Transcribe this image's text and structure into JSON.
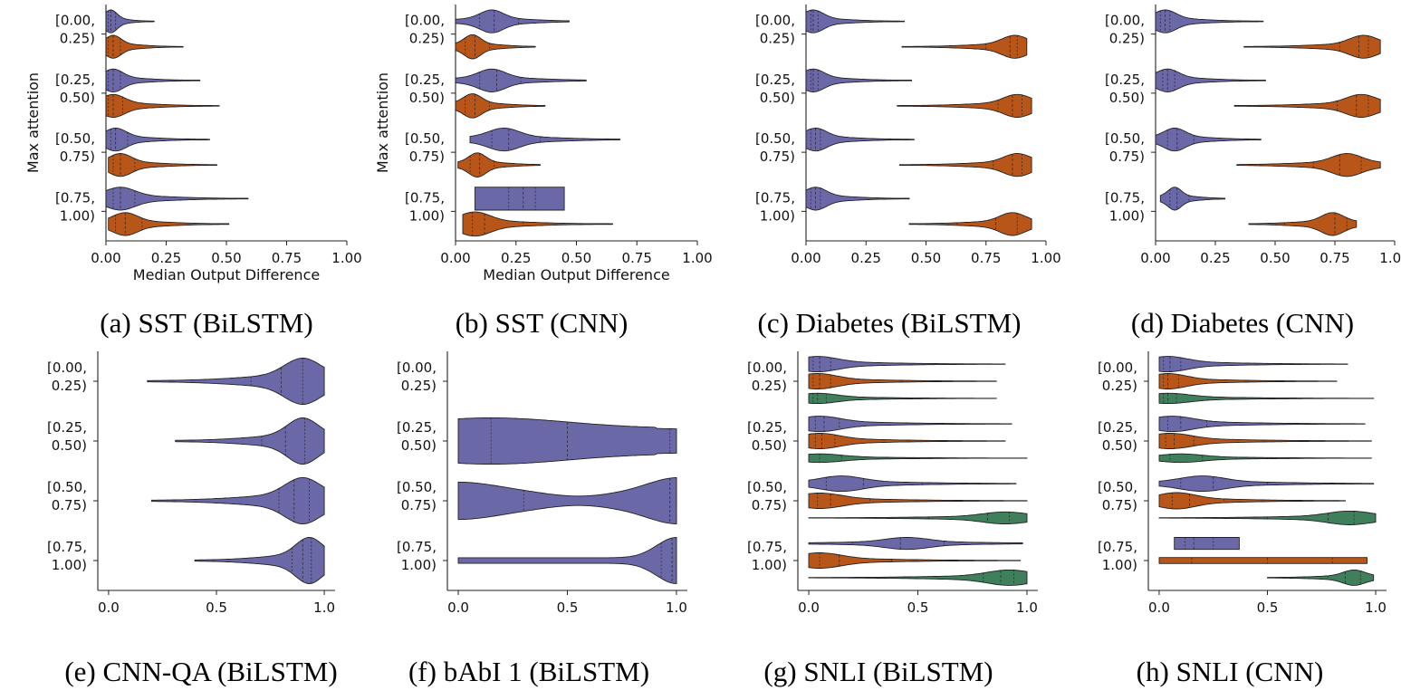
{
  "colors": {
    "purple": "#6b68a8",
    "orange": "#b8561a",
    "green": "#3f7f5c",
    "axis": "#222222"
  },
  "bin_labels": [
    "[0.00,|0.25)",
    "[0.25,|0.50)",
    "[0.50,|0.75)",
    "[0.75,|1.00)"
  ],
  "chart_data": [
    {
      "type": "violin",
      "caption": "(a) SST (BiLSTM)",
      "xlabel": "Median Output Difference",
      "ylabel": "Max attention",
      "xlim": [
        0,
        1
      ],
      "xticks": [
        0,
        0.25,
        0.5,
        0.75,
        1
      ],
      "xtick_labels": [
        "0.00",
        "0.25",
        "0.50",
        "0.75",
        "1.00"
      ],
      "groups": [
        [
          {
            "color": "purple",
            "min": 0.0,
            "max": 0.2,
            "q1": 0.01,
            "median": 0.02,
            "q3": 0.04,
            "peak": 0.02,
            "width": 0.9
          },
          {
            "color": "orange",
            "min": 0.0,
            "max": 0.32,
            "q1": 0.01,
            "median": 0.03,
            "q3": 0.06,
            "peak": 0.03,
            "width": 0.9
          }
        ],
        [
          {
            "color": "purple",
            "min": 0.0,
            "max": 0.39,
            "q1": 0.01,
            "median": 0.03,
            "q3": 0.06,
            "peak": 0.03,
            "width": 0.9
          },
          {
            "color": "orange",
            "min": 0.0,
            "max": 0.47,
            "q1": 0.01,
            "median": 0.03,
            "q3": 0.07,
            "peak": 0.03,
            "width": 0.9
          }
        ],
        [
          {
            "color": "purple",
            "min": 0.0,
            "max": 0.43,
            "q1": 0.02,
            "median": 0.04,
            "q3": 0.09,
            "peak": 0.04,
            "width": 0.9
          },
          {
            "color": "orange",
            "min": 0.01,
            "max": 0.46,
            "q1": 0.03,
            "median": 0.06,
            "q3": 0.12,
            "peak": 0.06,
            "width": 0.9
          }
        ],
        [
          {
            "color": "purple",
            "min": 0.0,
            "max": 0.59,
            "q1": 0.03,
            "median": 0.06,
            "q3": 0.12,
            "peak": 0.06,
            "width": 0.9
          },
          {
            "color": "orange",
            "min": 0.01,
            "max": 0.51,
            "q1": 0.04,
            "median": 0.08,
            "q3": 0.15,
            "peak": 0.08,
            "width": 0.9
          }
        ]
      ]
    },
    {
      "type": "violin",
      "caption": "(b) SST (CNN)",
      "xlabel": "Median Output Difference",
      "ylabel": "Max attention",
      "xlim": [
        0,
        1
      ],
      "xticks": [
        0,
        0.25,
        0.5,
        0.75,
        1
      ],
      "xtick_labels": [
        "0.00",
        "0.25",
        "0.50",
        "0.75",
        "1.00"
      ],
      "groups": [
        [
          {
            "color": "purple",
            "min": 0.0,
            "max": 0.47,
            "q1": 0.1,
            "median": 0.16,
            "q3": 0.26,
            "peak": 0.15,
            "width": 0.9
          },
          {
            "color": "orange",
            "min": 0.0,
            "max": 0.33,
            "q1": 0.04,
            "median": 0.08,
            "q3": 0.14,
            "peak": 0.07,
            "width": 0.95
          }
        ],
        [
          {
            "color": "purple",
            "min": 0.0,
            "max": 0.54,
            "q1": 0.1,
            "median": 0.17,
            "q3": 0.27,
            "peak": 0.15,
            "width": 0.9
          },
          {
            "color": "orange",
            "min": 0.0,
            "max": 0.37,
            "q1": 0.04,
            "median": 0.08,
            "q3": 0.14,
            "peak": 0.07,
            "width": 0.95
          }
        ],
        [
          {
            "color": "purple",
            "min": 0.06,
            "max": 0.68,
            "q1": 0.15,
            "median": 0.22,
            "q3": 0.35,
            "peak": 0.2,
            "width": 0.9
          },
          {
            "color": "orange",
            "min": 0.01,
            "max": 0.35,
            "q1": 0.06,
            "median": 0.1,
            "q3": 0.16,
            "peak": 0.09,
            "width": 0.95
          }
        ],
        [
          {
            "color": "purple",
            "min": 0.08,
            "max": 0.45,
            "q1": 0.22,
            "median": 0.28,
            "q3": 0.33,
            "peak": 0.28,
            "width": 0.9,
            "flat": true
          },
          {
            "color": "orange",
            "min": 0.03,
            "max": 0.65,
            "q1": 0.07,
            "median": 0.12,
            "q3": 0.28,
            "peak": 0.08,
            "width": 0.95
          }
        ]
      ]
    },
    {
      "type": "violin",
      "caption": "(c) Diabetes (BiLSTM)",
      "xlabel": "",
      "ylabel": "",
      "xlim": [
        0,
        1
      ],
      "xticks": [
        0,
        0.25,
        0.5,
        0.75,
        1
      ],
      "xtick_labels": [
        "0.00",
        "0.25",
        "0.50",
        "0.75",
        "1.00"
      ],
      "groups": [
        [
          {
            "color": "purple",
            "min": 0.0,
            "max": 0.41,
            "q1": 0.02,
            "median": 0.03,
            "q3": 0.05,
            "peak": 0.03,
            "width": 0.9
          },
          {
            "color": "orange",
            "min": 0.4,
            "max": 0.92,
            "q1": 0.75,
            "median": 0.85,
            "q3": 0.88,
            "peak": 0.87,
            "width": 0.9
          }
        ],
        [
          {
            "color": "purple",
            "min": 0.0,
            "max": 0.44,
            "q1": 0.02,
            "median": 0.03,
            "q3": 0.05,
            "peak": 0.03,
            "width": 0.9
          },
          {
            "color": "orange",
            "min": 0.38,
            "max": 0.94,
            "q1": 0.8,
            "median": 0.86,
            "q3": 0.9,
            "peak": 0.88,
            "width": 0.9
          }
        ],
        [
          {
            "color": "purple",
            "min": 0.0,
            "max": 0.45,
            "q1": 0.02,
            "median": 0.04,
            "q3": 0.06,
            "peak": 0.04,
            "width": 0.9
          },
          {
            "color": "orange",
            "min": 0.39,
            "max": 0.94,
            "q1": 0.78,
            "median": 0.86,
            "q3": 0.9,
            "peak": 0.88,
            "width": 0.9
          }
        ],
        [
          {
            "color": "purple",
            "min": 0.0,
            "max": 0.43,
            "q1": 0.02,
            "median": 0.04,
            "q3": 0.06,
            "peak": 0.04,
            "width": 0.9
          },
          {
            "color": "orange",
            "min": 0.43,
            "max": 0.94,
            "q1": 0.63,
            "median": 0.79,
            "q3": 0.88,
            "peak": 0.86,
            "width": 0.9
          }
        ]
      ]
    },
    {
      "type": "violin",
      "caption": "(d) Diabetes (CNN)",
      "xlabel": "",
      "ylabel": "",
      "xlim": [
        0,
        1
      ],
      "xticks": [
        0,
        0.25,
        0.5,
        0.75,
        1
      ],
      "xtick_labels": [
        "0.00",
        "0.25",
        "0.50",
        "0.75",
        "1.00"
      ],
      "groups": [
        [
          {
            "color": "purple",
            "min": 0.0,
            "max": 0.45,
            "q1": 0.02,
            "median": 0.04,
            "q3": 0.06,
            "peak": 0.04,
            "width": 0.9
          },
          {
            "color": "orange",
            "min": 0.37,
            "max": 0.94,
            "q1": 0.77,
            "median": 0.85,
            "q3": 0.89,
            "peak": 0.87,
            "width": 0.9
          }
        ],
        [
          {
            "color": "purple",
            "min": 0.0,
            "max": 0.46,
            "q1": 0.03,
            "median": 0.05,
            "q3": 0.08,
            "peak": 0.05,
            "width": 0.9
          },
          {
            "color": "orange",
            "min": 0.33,
            "max": 0.94,
            "q1": 0.76,
            "median": 0.84,
            "q3": 0.89,
            "peak": 0.86,
            "width": 0.9
          }
        ],
        [
          {
            "color": "purple",
            "min": 0.0,
            "max": 0.44,
            "q1": 0.05,
            "median": 0.09,
            "q3": 0.16,
            "peak": 0.08,
            "width": 0.9
          },
          {
            "color": "orange",
            "min": 0.34,
            "max": 0.94,
            "q1": 0.66,
            "median": 0.77,
            "q3": 0.86,
            "peak": 0.8,
            "width": 0.9
          }
        ],
        [
          {
            "color": "purple",
            "min": 0.02,
            "max": 0.29,
            "q1": 0.06,
            "median": 0.09,
            "q3": 0.14,
            "peak": 0.08,
            "width": 0.9
          },
          {
            "color": "orange",
            "min": 0.39,
            "max": 0.84,
            "q1": 0.54,
            "median": 0.75,
            "q3": 0.8,
            "peak": 0.74,
            "width": 0.9
          }
        ]
      ]
    },
    {
      "type": "violin",
      "caption": "(e) CNN-QA (BiLSTM)",
      "xlabel": "",
      "ylabel": "",
      "xlim": [
        -0.05,
        1.05
      ],
      "xticks": [
        0,
        0.5,
        1
      ],
      "xtick_labels": [
        "0.0",
        "0.5",
        "1.0"
      ],
      "groups": [
        [
          {
            "color": "purple",
            "min": 0.18,
            "max": 1.0,
            "q1": 0.66,
            "median": 0.8,
            "q3": 0.9,
            "peak": 0.9,
            "width": 0.9
          }
        ],
        [
          {
            "color": "purple",
            "min": 0.31,
            "max": 1.0,
            "q1": 0.71,
            "median": 0.82,
            "q3": 0.91,
            "peak": 0.9,
            "width": 0.9
          }
        ],
        [
          {
            "color": "purple",
            "min": 0.2,
            "max": 1.0,
            "q1": 0.79,
            "median": 0.86,
            "q3": 0.93,
            "peak": 0.9,
            "width": 0.9
          }
        ],
        [
          {
            "color": "purple",
            "min": 0.4,
            "max": 1.0,
            "q1": 0.85,
            "median": 0.9,
            "q3": 0.94,
            "peak": 0.93,
            "width": 0.9
          }
        ]
      ]
    },
    {
      "type": "violin",
      "caption": "(f) bAbI 1 (BiLSTM)",
      "xlabel": "",
      "ylabel": "",
      "xlim": [
        -0.05,
        1.05
      ],
      "xticks": [
        0,
        0.5,
        1
      ],
      "xtick_labels": [
        "0.0",
        "0.5",
        "1.0"
      ],
      "groups": [
        [],
        [
          {
            "color": "purple",
            "min": 0.0,
            "max": 1.0,
            "q1": 0.15,
            "median": 0.5,
            "q3": 0.97,
            "shape": "babi2",
            "width": 0.9
          }
        ],
        [
          {
            "color": "purple",
            "min": 0.0,
            "max": 1.0,
            "q1": 0.3,
            "median": 0.97,
            "q3": 1.0,
            "shape": "babi3",
            "width": 0.9
          }
        ],
        [
          {
            "color": "purple",
            "min": 0.0,
            "max": 1.0,
            "q1": 0.93,
            "median": 0.98,
            "q3": 1.0,
            "shape": "babi4",
            "width": 0.9
          }
        ]
      ]
    },
    {
      "type": "violin",
      "caption": "(g) SNLI (BiLSTM)",
      "xlabel": "",
      "ylabel": "",
      "xlim": [
        -0.05,
        1.05
      ],
      "xticks": [
        0,
        0.5,
        1
      ],
      "xtick_labels": [
        "0.0",
        "0.5",
        "1.0"
      ],
      "groups": [
        [
          {
            "color": "purple",
            "min": 0.0,
            "max": 0.9,
            "q1": 0.02,
            "median": 0.05,
            "q3": 0.1,
            "peak": 0.04,
            "width": 0.9
          },
          {
            "color": "orange",
            "min": 0.0,
            "max": 0.86,
            "q1": 0.02,
            "median": 0.05,
            "q3": 0.1,
            "peak": 0.04,
            "width": 0.9
          },
          {
            "color": "green",
            "min": 0.0,
            "max": 0.86,
            "q1": 0.02,
            "median": 0.04,
            "q3": 0.08,
            "peak": 0.04,
            "width": 0.6
          }
        ],
        [
          {
            "color": "purple",
            "min": 0.0,
            "max": 0.93,
            "q1": 0.03,
            "median": 0.07,
            "q3": 0.14,
            "peak": 0.05,
            "width": 0.9
          },
          {
            "color": "orange",
            "min": 0.0,
            "max": 0.9,
            "q1": 0.03,
            "median": 0.06,
            "q3": 0.12,
            "peak": 0.05,
            "width": 0.9
          },
          {
            "color": "green",
            "min": 0.0,
            "max": 1.0,
            "q1": 0.05,
            "median": 0.15,
            "q3": 0.45,
            "peak": 0.05,
            "width": 0.5
          }
        ],
        [
          {
            "color": "purple",
            "min": 0.0,
            "max": 0.95,
            "q1": 0.08,
            "median": 0.25,
            "q3": 0.52,
            "peak": 0.15,
            "width": 0.9
          },
          {
            "color": "orange",
            "min": 0.0,
            "max": 1.0,
            "q1": 0.04,
            "median": 0.1,
            "q3": 0.28,
            "peak": 0.05,
            "width": 0.9
          },
          {
            "color": "green",
            "min": 0.0,
            "max": 1.0,
            "q1": 0.55,
            "median": 0.82,
            "q3": 0.92,
            "peak": 0.9,
            "width": 0.7
          }
        ],
        [
          {
            "color": "purple",
            "min": 0.0,
            "max": 0.98,
            "q1": 0.2,
            "median": 0.42,
            "q3": 0.62,
            "peak": 0.45,
            "width": 0.7
          },
          {
            "color": "orange",
            "min": 0.0,
            "max": 0.97,
            "q1": 0.05,
            "median": 0.14,
            "q3": 0.38,
            "peak": 0.05,
            "width": 0.9
          },
          {
            "color": "green",
            "min": 0.0,
            "max": 1.0,
            "q1": 0.8,
            "median": 0.88,
            "q3": 0.94,
            "peak": 0.92,
            "width": 0.9
          }
        ]
      ]
    },
    {
      "type": "violin",
      "caption": "(h) SNLI (CNN)",
      "xlabel": "",
      "ylabel": "",
      "xlim": [
        -0.05,
        1.05
      ],
      "xticks": [
        0,
        0.5,
        1
      ],
      "xtick_labels": [
        "0.0",
        "0.5",
        "1.0"
      ],
      "groups": [
        [
          {
            "color": "purple",
            "min": 0.0,
            "max": 0.87,
            "q1": 0.02,
            "median": 0.05,
            "q3": 0.1,
            "peak": 0.04,
            "width": 0.9
          },
          {
            "color": "orange",
            "min": 0.0,
            "max": 0.82,
            "q1": 0.02,
            "median": 0.04,
            "q3": 0.09,
            "peak": 0.04,
            "width": 0.9
          },
          {
            "color": "green",
            "min": 0.0,
            "max": 0.99,
            "q1": 0.02,
            "median": 0.04,
            "q3": 0.08,
            "peak": 0.04,
            "width": 0.6
          }
        ],
        [
          {
            "color": "purple",
            "min": 0.0,
            "max": 0.95,
            "q1": 0.04,
            "median": 0.1,
            "q3": 0.22,
            "peak": 0.06,
            "width": 0.9
          },
          {
            "color": "orange",
            "min": 0.0,
            "max": 0.98,
            "q1": 0.03,
            "median": 0.07,
            "q3": 0.16,
            "peak": 0.05,
            "width": 0.9
          },
          {
            "color": "green",
            "min": 0.0,
            "max": 0.98,
            "q1": 0.05,
            "median": 0.2,
            "q3": 0.5,
            "peak": 0.1,
            "width": 0.5
          }
        ],
        [
          {
            "color": "purple",
            "min": 0.0,
            "max": 0.99,
            "q1": 0.1,
            "median": 0.25,
            "q3": 0.5,
            "peak": 0.2,
            "width": 0.9
          },
          {
            "color": "orange",
            "min": 0.0,
            "max": 0.86,
            "q1": 0.06,
            "median": 0.14,
            "q3": 0.3,
            "peak": 0.08,
            "width": 0.95
          },
          {
            "color": "green",
            "min": 0.0,
            "max": 1.0,
            "q1": 0.5,
            "median": 0.78,
            "q3": 0.9,
            "peak": 0.88,
            "width": 0.8
          }
        ],
        [
          {
            "color": "purple",
            "min": 0.07,
            "max": 0.37,
            "q1": 0.12,
            "median": 0.16,
            "q3": 0.25,
            "peak": 0.15,
            "width": 0.7,
            "flat": true
          },
          {
            "color": "orange",
            "min": 0.0,
            "max": 0.96,
            "q1": 0.15,
            "median": 0.5,
            "q3": 0.8,
            "peak": 0.5,
            "width": 0.35,
            "flat": true
          },
          {
            "color": "green",
            "min": 0.5,
            "max": 0.99,
            "q1": 0.78,
            "median": 0.86,
            "q3": 0.93,
            "peak": 0.9,
            "width": 0.9
          }
        ]
      ]
    }
  ]
}
